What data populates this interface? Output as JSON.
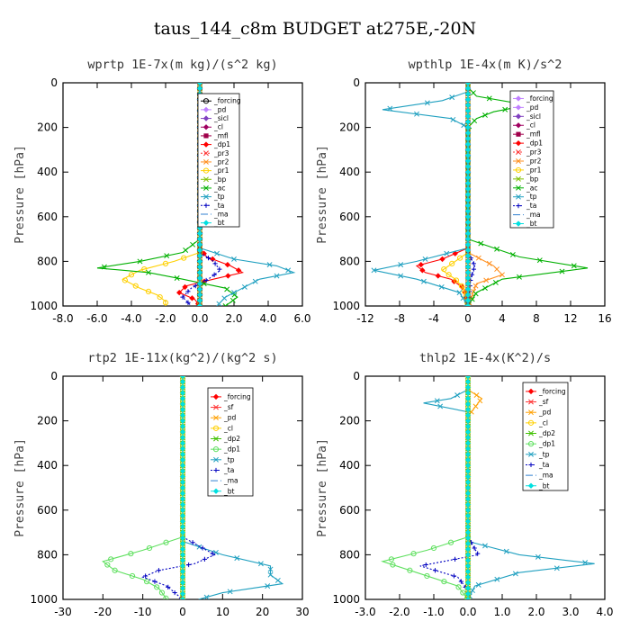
{
  "figure": {
    "title": "taus_144_c8m  BUDGET at275E,-20N"
  },
  "chart_data": [
    {
      "type": "line",
      "title": "wprtp  1E-7x(m kg)/(s^2 kg)",
      "ylabel": "Pressure [hPa]",
      "xlim": [
        -8,
        6
      ],
      "ylim": [
        1000,
        0
      ],
      "xticks": [
        -8,
        -6,
        -4,
        -2,
        0,
        2,
        4,
        6
      ],
      "xtick_labels": [
        "-8.0",
        "-6.0",
        "-4.0",
        "-2.0",
        "0.0",
        "2.0",
        "4.0",
        "6.0"
      ],
      "yticks": [
        0,
        200,
        400,
        600,
        800,
        1000
      ],
      "legend_position": "top-right",
      "series": [
        {
          "name": "_forcing",
          "color": "#000000",
          "dash": "",
          "marker": "o",
          "p": [
            0,
            200,
            400,
            600,
            800,
            1000
          ],
          "v": [
            0,
            0,
            0,
            0,
            0,
            0
          ]
        },
        {
          "name": "_pd",
          "color": "#c080ff",
          "dash": "",
          "marker": "d",
          "p": [
            0,
            1000
          ],
          "v": [
            0,
            0
          ]
        },
        {
          "name": "_sicl",
          "color": "#8040c0",
          "dash": "",
          "marker": "d",
          "p": [
            0,
            1000
          ],
          "v": [
            0,
            0
          ]
        },
        {
          "name": "_cl",
          "color": "#a00060",
          "dash": "",
          "marker": "d",
          "p": [
            0,
            1000
          ],
          "v": [
            0,
            0
          ]
        },
        {
          "name": "_mfl",
          "color": "#a0004a",
          "dash": "",
          "marker": "s",
          "p": [
            0,
            1000
          ],
          "v": [
            0,
            0
          ]
        },
        {
          "name": "_dp1",
          "color": "#ff0000",
          "dash": "",
          "marker": "d",
          "p": [
            740,
            780,
            820,
            850,
            880,
            910,
            940,
            970,
            1000
          ],
          "v": [
            0,
            0.4,
            1.8,
            2.5,
            0.8,
            -0.8,
            -1.2,
            -0.3,
            0
          ]
        },
        {
          "name": "_pr3",
          "color": "#ff3030",
          "dash": "2,2",
          "marker": "x",
          "p": [
            0,
            1000
          ],
          "v": [
            0,
            0
          ]
        },
        {
          "name": "_pr2",
          "color": "#ff9020",
          "dash": "",
          "marker": "x",
          "p": [
            0,
            1000
          ],
          "v": [
            0,
            0
          ]
        },
        {
          "name": "_pr1",
          "color": "#ffd000",
          "dash": "",
          "marker": "o",
          "p": [
            760,
            800,
            840,
            880,
            920,
            950,
            980,
            1000
          ],
          "v": [
            0,
            -1.5,
            -3.5,
            -4.5,
            -3.5,
            -2.5,
            -2.0,
            -2.0
          ]
        },
        {
          "name": "_bp",
          "color": "#80c000",
          "dash": "",
          "marker": "x",
          "p": [
            0,
            1000
          ],
          "v": [
            0,
            0
          ]
        },
        {
          "name": "_ac",
          "color": "#00b000",
          "dash": "",
          "marker": "x",
          "p": [
            700,
            760,
            800,
            830,
            850,
            880,
            920,
            960,
            1000
          ],
          "v": [
            0,
            -1.0,
            -3.5,
            -6.0,
            -3.0,
            -1.0,
            1.5,
            2.2,
            1.5
          ]
        },
        {
          "name": "_tp",
          "color": "#20a0c0",
          "dash": "",
          "marker": "x",
          "p": [
            740,
            790,
            820,
            850,
            880,
            920,
            960,
            1000
          ],
          "v": [
            0,
            2.0,
            4.5,
            5.5,
            3.5,
            2.5,
            1.5,
            1.0
          ]
        },
        {
          "name": "_ta",
          "color": "#0000c0",
          "dash": "2,2",
          "marker": "+",
          "p": [
            760,
            800,
            840,
            880,
            920,
            960,
            1000
          ],
          "v": [
            0,
            0.8,
            1.2,
            0.5,
            -0.5,
            -1.0,
            -0.5
          ]
        },
        {
          "name": "_ma",
          "color": "#3080d0",
          "dash": "8,3",
          "marker": "",
          "p": [
            0,
            1000
          ],
          "v": [
            0,
            0
          ]
        },
        {
          "name": "_bt",
          "color": "#00e0e0",
          "dash": "",
          "marker": "d",
          "p": [
            0,
            1000
          ],
          "v": [
            0,
            0
          ]
        }
      ]
    },
    {
      "type": "line",
      "title": "wpthlp  1E-4x(m K)/s^2",
      "ylabel": "Pressure [hPa]",
      "xlim": [
        -12,
        16
      ],
      "ylim": [
        1000,
        0
      ],
      "xticks": [
        -12,
        -8,
        -4,
        0,
        4,
        8,
        12,
        16
      ],
      "xtick_labels": [
        "-12",
        "-8",
        "-4",
        "0",
        "4",
        "8",
        "12",
        "16"
      ],
      "yticks": [
        0,
        200,
        400,
        600,
        800,
        1000
      ],
      "legend_position": "top-right",
      "series": [
        {
          "name": "_forcing",
          "color": "#c080ff",
          "dash": "",
          "marker": "d",
          "p": [
            0,
            1000
          ],
          "v": [
            0,
            0
          ]
        },
        {
          "name": "_pd",
          "color": "#c080ff",
          "dash": "",
          "marker": "d",
          "p": [
            0,
            1000
          ],
          "v": [
            0,
            0
          ]
        },
        {
          "name": "_sicl",
          "color": "#8040c0",
          "dash": "",
          "marker": "d",
          "p": [
            0,
            1000
          ],
          "v": [
            0,
            0
          ]
        },
        {
          "name": "_cl",
          "color": "#a00060",
          "dash": "",
          "marker": "d",
          "p": [
            0,
            1000
          ],
          "v": [
            0,
            0
          ]
        },
        {
          "name": "_mfl",
          "color": "#a0004a",
          "dash": "",
          "marker": "s",
          "p": [
            0,
            1000
          ],
          "v": [
            0,
            0
          ]
        },
        {
          "name": "_dp1",
          "color": "#ff0000",
          "dash": "",
          "marker": "d",
          "p": [
            740,
            790,
            820,
            850,
            880,
            920,
            1000
          ],
          "v": [
            0,
            -3,
            -6,
            -5,
            -2,
            -0.5,
            0
          ]
        },
        {
          "name": "_pr3",
          "color": "#ff3030",
          "dash": "2,2",
          "marker": "x",
          "p": [
            0,
            1000
          ],
          "v": [
            0,
            0
          ]
        },
        {
          "name": "_pr2",
          "color": "#ff9020",
          "dash": "",
          "marker": "x",
          "p": [
            760,
            820,
            860,
            900,
            1000
          ],
          "v": [
            0,
            3,
            4,
            1,
            0
          ]
        },
        {
          "name": "_pr1",
          "color": "#ffd000",
          "dash": "",
          "marker": "o",
          "p": [
            760,
            800,
            840,
            880,
            920,
            1000
          ],
          "v": [
            0,
            -1.5,
            -3,
            -1.5,
            -0.5,
            0
          ]
        },
        {
          "name": "_bp",
          "color": "#80c000",
          "dash": "",
          "marker": "x",
          "p": [
            0,
            1000
          ],
          "v": [
            0,
            0
          ]
        },
        {
          "name": "_ac",
          "color": "#00b000",
          "dash": "",
          "marker": "x",
          "p": [
            20,
            60,
            100,
            130,
            160,
            200,
            700,
            780,
            830,
            880,
            940,
            1000
          ],
          "v": [
            0,
            1,
            7,
            3,
            1,
            0,
            0,
            6,
            14,
            4,
            1,
            0
          ]
        },
        {
          "name": "_tp",
          "color": "#20a0c0",
          "dash": "",
          "marker": "x",
          "p": [
            40,
            80,
            120,
            160,
            200,
            740,
            800,
            840,
            880,
            940,
            1000
          ],
          "v": [
            0,
            -3,
            -10,
            -2,
            0,
            0,
            -6,
            -11,
            -6,
            -1,
            0
          ]
        },
        {
          "name": "_ta",
          "color": "#0000c0",
          "dash": "2,2",
          "marker": "+",
          "p": [
            760,
            820,
            880,
            1000
          ],
          "v": [
            0,
            0.8,
            0.3,
            0
          ]
        },
        {
          "name": "_ma",
          "color": "#3080d0",
          "dash": "8,3",
          "marker": "",
          "p": [
            0,
            1000
          ],
          "v": [
            0,
            0
          ]
        },
        {
          "name": "_bt",
          "color": "#00e0e0",
          "dash": "",
          "marker": "d",
          "p": [
            0,
            1000
          ],
          "v": [
            0,
            0
          ]
        }
      ]
    },
    {
      "type": "line",
      "title": "rtp2  1E-11x(kg^2)/(kg^2 s)",
      "ylabel": "Pressure [hPa]",
      "xlim": [
        -30,
        30
      ],
      "ylim": [
        1000,
        0
      ],
      "xticks": [
        -30,
        -20,
        -10,
        0,
        10,
        20,
        30
      ],
      "xtick_labels": [
        "-30",
        "-20",
        "-10",
        "0",
        "10",
        "20",
        "30"
      ],
      "yticks": [
        0,
        200,
        400,
        600,
        800,
        1000
      ],
      "legend_position": "top-right",
      "series": [
        {
          "name": "_forcing",
          "color": "#ff0000",
          "dash": "",
          "marker": "d",
          "p": [
            0,
            200,
            400,
            600,
            800,
            1000
          ],
          "v": [
            0,
            0,
            0,
            0,
            0,
            0
          ]
        },
        {
          "name": "_sf",
          "color": "#ff3030",
          "dash": "",
          "marker": "x",
          "p": [
            0,
            1000
          ],
          "v": [
            0,
            0
          ]
        },
        {
          "name": "_pd",
          "color": "#ffa000",
          "dash": "",
          "marker": "x",
          "p": [
            0,
            1000
          ],
          "v": [
            0,
            0
          ]
        },
        {
          "name": "_cl",
          "color": "#ffd000",
          "dash": "",
          "marker": "o",
          "p": [
            0,
            1000
          ],
          "v": [
            0,
            0
          ]
        },
        {
          "name": "_dp2",
          "color": "#40c000",
          "dash": "",
          "marker": "x",
          "p": [
            0,
            1000
          ],
          "v": [
            0,
            0
          ]
        },
        {
          "name": "_dp1",
          "color": "#60e060",
          "dash": "",
          "marker": "o",
          "p": [
            720,
            780,
            830,
            870,
            910,
            950,
            1000
          ],
          "v": [
            0,
            -10,
            -20,
            -17,
            -10,
            -6,
            -4
          ]
        },
        {
          "name": "_tp",
          "color": "#20a0c0",
          "dash": "",
          "marker": "x",
          "p": [
            740,
            800,
            850,
            890,
            930,
            970,
            1000
          ],
          "v": [
            0,
            10,
            22,
            22,
            25,
            10,
            4
          ]
        },
        {
          "name": "_ta",
          "color": "#0000c0",
          "dash": "2,2",
          "marker": "+",
          "p": [
            720,
            760,
            800,
            840,
            870,
            900,
            940,
            1000
          ],
          "v": [
            0,
            4,
            8,
            3,
            -6,
            -10,
            -4,
            0
          ]
        },
        {
          "name": "_ma",
          "color": "#3080d0",
          "dash": "8,3",
          "marker": "",
          "p": [
            0,
            1000
          ],
          "v": [
            0,
            0
          ]
        },
        {
          "name": "_bt",
          "color": "#00e0e0",
          "dash": "",
          "marker": "d",
          "p": [
            0,
            1000
          ],
          "v": [
            0,
            0
          ]
        }
      ]
    },
    {
      "type": "line",
      "title": "thlp2  1E-4x(K^2)/s",
      "ylabel": "Pressure [hPa]",
      "xlim": [
        -3,
        4
      ],
      "ylim": [
        1000,
        0
      ],
      "xticks": [
        -3,
        -2,
        -1,
        0,
        1,
        2,
        3,
        4
      ],
      "xtick_labels": [
        "-3.0",
        "-2.0",
        "-1.0",
        "0.0",
        "1.0",
        "2.0",
        "3.0",
        "4.0"
      ],
      "yticks": [
        0,
        200,
        400,
        600,
        800,
        1000
      ],
      "legend_position": "top-right",
      "series": [
        {
          "name": "_forcing",
          "color": "#ff0000",
          "dash": "",
          "marker": "d",
          "p": [
            0,
            200,
            400,
            600,
            800,
            1000
          ],
          "v": [
            0,
            0,
            0,
            0,
            0,
            0
          ]
        },
        {
          "name": "_sf",
          "color": "#ff3030",
          "dash": "",
          "marker": "x",
          "p": [
            0,
            1000
          ],
          "v": [
            0,
            0
          ]
        },
        {
          "name": "_pd",
          "color": "#ffa000",
          "dash": "",
          "marker": "x",
          "p": [
            60,
            100,
            140,
            180,
            1000
          ],
          "v": [
            0,
            0.4,
            0.2,
            0,
            0
          ]
        },
        {
          "name": "_cl",
          "color": "#ffd000",
          "dash": "",
          "marker": "o",
          "p": [
            0,
            1000
          ],
          "v": [
            0,
            0
          ]
        },
        {
          "name": "_dp2",
          "color": "#40c000",
          "dash": "",
          "marker": "x",
          "p": [
            0,
            1000
          ],
          "v": [
            0,
            0
          ]
        },
        {
          "name": "_dp1",
          "color": "#60e060",
          "dash": "",
          "marker": "o",
          "p": [
            720,
            780,
            830,
            880,
            940,
            1000
          ],
          "v": [
            0,
            -1.2,
            -2.5,
            -1.5,
            -0.3,
            0
          ]
        },
        {
          "name": "_tp",
          "color": "#20a0c0",
          "dash": "",
          "marker": "x",
          "p": [
            60,
            100,
            120,
            160,
            740,
            800,
            840,
            880,
            940,
            1000
          ],
          "v": [
            0,
            -0.5,
            -1.3,
            0,
            0,
            1.5,
            3.7,
            1.5,
            0.2,
            0
          ]
        },
        {
          "name": "_ta",
          "color": "#0000c0",
          "dash": "2,2",
          "marker": "+",
          "p": [
            720,
            800,
            850,
            900,
            960,
            1000
          ],
          "v": [
            0,
            0.3,
            -1.4,
            -0.3,
            0,
            0
          ]
        },
        {
          "name": "_ma",
          "color": "#3080d0",
          "dash": "8,3",
          "marker": "",
          "p": [
            0,
            1000
          ],
          "v": [
            0,
            0
          ]
        },
        {
          "name": "_bt",
          "color": "#00e0e0",
          "dash": "",
          "marker": "d",
          "p": [
            0,
            1000
          ],
          "v": [
            0,
            0
          ]
        }
      ]
    }
  ]
}
